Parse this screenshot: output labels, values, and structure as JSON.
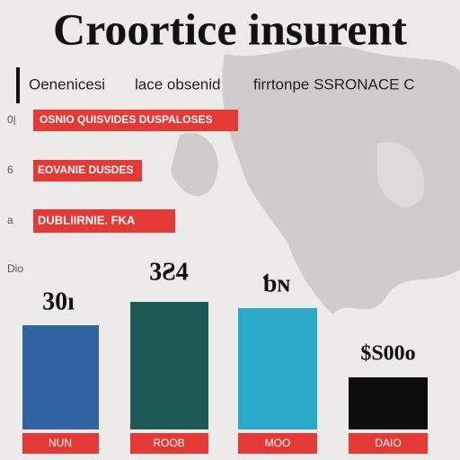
{
  "title": "Croortice insurent",
  "subtitle": [
    "Oenenicesi",
    "lace obsenid",
    "firrtonpe SSRONACE C"
  ],
  "rows": [
    {
      "marker": "0|",
      "label": "OSNIO QUISVIDES DUSPALOSES"
    },
    {
      "marker": "6",
      "label": "EOVANIE DUSDES"
    },
    {
      "marker": "a",
      "label": "DUBLIIRNIE.  FKA"
    }
  ],
  "columns_marker": "Dio",
  "columns": [
    {
      "value_label": "30ı",
      "label": "NUN"
    },
    {
      "value_label": "3Ƨ4",
      "label": "ROOB"
    },
    {
      "value_label": "ƅɴ",
      "label": "MOO"
    },
    {
      "value_label": "$S00o",
      "label": "DAIO"
    }
  ]
}
